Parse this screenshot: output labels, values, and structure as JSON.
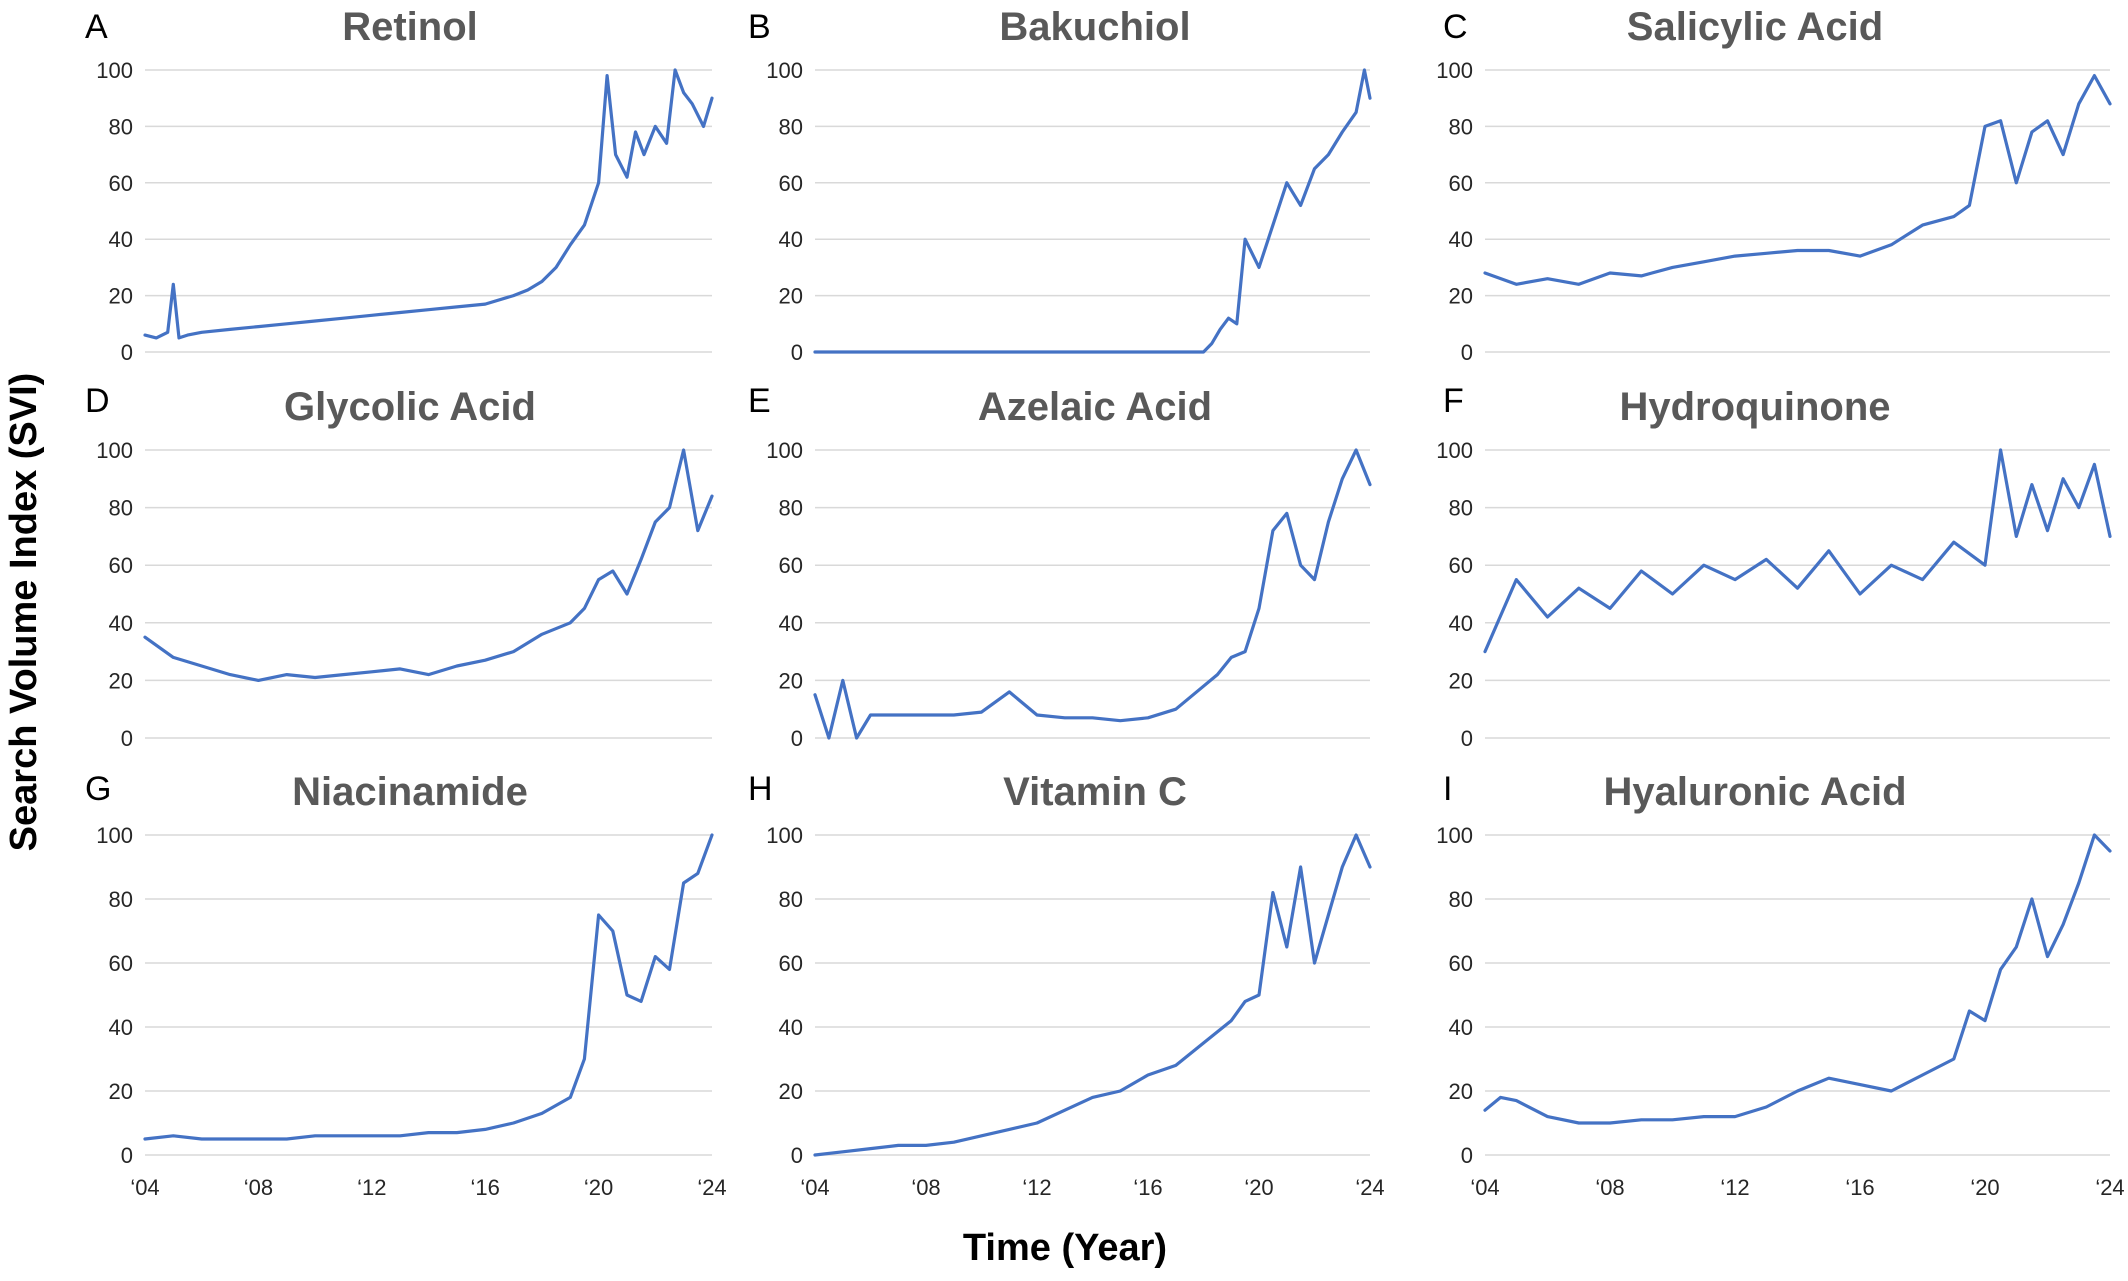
{
  "figure": {
    "ylabel": "Search Volume Index (SVI)",
    "xlabel": "Time (Year)",
    "series_color": "#4472c4",
    "grid_color": "#d9d9d9",
    "title_color": "#595959"
  },
  "chart_data": [
    {
      "type": "line",
      "letter": "A",
      "title": "Retinol",
      "xlim": [
        2004,
        2024
      ],
      "ylim": [
        0,
        100
      ],
      "yticks": [
        "0",
        "20",
        "40",
        "60",
        "80",
        "100"
      ],
      "xticks": [],
      "grid": true,
      "x": [
        2004.0,
        2004.4,
        2004.8,
        2005.0,
        2005.2,
        2005.5,
        2006,
        2007,
        2008,
        2009,
        2010,
        2011,
        2012,
        2013,
        2014,
        2015,
        2016,
        2017,
        2017.5,
        2018,
        2018.5,
        2019,
        2019.5,
        2020,
        2020.3,
        2020.6,
        2021,
        2021.3,
        2021.6,
        2022,
        2022.4,
        2022.7,
        2023,
        2023.3,
        2023.7,
        2024
      ],
      "values": [
        6,
        5,
        7,
        24,
        5,
        6,
        7,
        8,
        9,
        10,
        11,
        12,
        13,
        14,
        15,
        16,
        17,
        20,
        22,
        25,
        30,
        38,
        45,
        60,
        98,
        70,
        62,
        78,
        70,
        80,
        74,
        100,
        92,
        88,
        80,
        90
      ]
    },
    {
      "type": "line",
      "letter": "B",
      "title": "Bakuchiol",
      "xlim": [
        2004,
        2024
      ],
      "ylim": [
        0,
        100
      ],
      "yticks": [
        "0",
        "20",
        "40",
        "60",
        "80",
        "100"
      ],
      "xticks": [],
      "grid": true,
      "x": [
        2004,
        2010,
        2016,
        2018.0,
        2018.3,
        2018.6,
        2018.9,
        2019.2,
        2019.5,
        2020,
        2020.5,
        2021,
        2021.5,
        2022,
        2022.5,
        2023,
        2023.5,
        2023.8,
        2024
      ],
      "values": [
        0,
        0,
        0,
        0,
        3,
        8,
        12,
        10,
        40,
        30,
        45,
        60,
        52,
        65,
        70,
        78,
        85,
        100,
        90
      ]
    },
    {
      "type": "line",
      "letter": "C",
      "title": "Salicylic Acid",
      "xlim": [
        2004,
        2024
      ],
      "ylim": [
        0,
        100
      ],
      "yticks": [
        "0",
        "20",
        "40",
        "60",
        "80",
        "100"
      ],
      "xticks": [],
      "grid": true,
      "x": [
        2004,
        2005,
        2006,
        2007,
        2008,
        2009,
        2010,
        2011,
        2012,
        2013,
        2014,
        2015,
        2016,
        2017,
        2018,
        2019,
        2019.5,
        2020,
        2020.5,
        2021,
        2021.5,
        2022,
        2022.5,
        2023,
        2023.5,
        2024
      ],
      "values": [
        28,
        24,
        26,
        24,
        28,
        27,
        30,
        32,
        34,
        35,
        36,
        36,
        34,
        38,
        45,
        48,
        52,
        80,
        82,
        60,
        78,
        82,
        70,
        88,
        98,
        88
      ]
    },
    {
      "type": "line",
      "letter": "D",
      "title": "Glycolic Acid",
      "xlim": [
        2004,
        2024
      ],
      "ylim": [
        0,
        100
      ],
      "yticks": [
        "0",
        "20",
        "40",
        "60",
        "80",
        "100"
      ],
      "xticks": [],
      "grid": true,
      "x": [
        2004,
        2005,
        2006,
        2007,
        2008,
        2009,
        2010,
        2011,
        2012,
        2013,
        2014,
        2015,
        2016,
        2017,
        2018,
        2019,
        2019.5,
        2020,
        2020.5,
        2021,
        2021.5,
        2022,
        2022.5,
        2023,
        2023.5,
        2024
      ],
      "values": [
        35,
        28,
        25,
        22,
        20,
        22,
        21,
        22,
        23,
        24,
        22,
        25,
        27,
        30,
        36,
        40,
        45,
        55,
        58,
        50,
        62,
        75,
        80,
        100,
        72,
        84
      ]
    },
    {
      "type": "line",
      "letter": "E",
      "title": "Azelaic Acid",
      "xlim": [
        2004,
        2024
      ],
      "ylim": [
        0,
        100
      ],
      "yticks": [
        "0",
        "20",
        "40",
        "60",
        "80",
        "100"
      ],
      "xticks": [],
      "grid": true,
      "x": [
        2004,
        2004.5,
        2005,
        2005.5,
        2006,
        2007,
        2008,
        2009,
        2010,
        2011,
        2012,
        2013,
        2014,
        2015,
        2016,
        2017,
        2018,
        2018.5,
        2019,
        2019.5,
        2020,
        2020.5,
        2021,
        2021.5,
        2022,
        2022.5,
        2023,
        2023.5,
        2024
      ],
      "values": [
        15,
        0,
        20,
        0,
        8,
        8,
        8,
        8,
        9,
        16,
        8,
        7,
        7,
        6,
        7,
        10,
        18,
        22,
        28,
        30,
        45,
        72,
        78,
        60,
        55,
        75,
        90,
        100,
        88
      ]
    },
    {
      "type": "line",
      "letter": "F",
      "title": "Hydroquinone",
      "xlim": [
        2004,
        2024
      ],
      "ylim": [
        0,
        100
      ],
      "yticks": [
        "0",
        "20",
        "40",
        "60",
        "80",
        "100"
      ],
      "xticks": [],
      "grid": true,
      "x": [
        2004,
        2005,
        2006,
        2007,
        2008,
        2009,
        2010,
        2011,
        2012,
        2013,
        2014,
        2015,
        2016,
        2017,
        2018,
        2019,
        2020,
        2020.5,
        2021,
        2021.5,
        2022,
        2022.5,
        2023,
        2023.5,
        2024
      ],
      "values": [
        30,
        55,
        42,
        52,
        45,
        58,
        50,
        60,
        55,
        62,
        52,
        65,
        50,
        60,
        55,
        68,
        60,
        100,
        70,
        88,
        72,
        90,
        80,
        95,
        70
      ]
    },
    {
      "type": "line",
      "letter": "G",
      "title": "Niacinamide",
      "xlim": [
        2004,
        2024
      ],
      "ylim": [
        0,
        100
      ],
      "yticks": [
        "0",
        "20",
        "40",
        "60",
        "80",
        "100"
      ],
      "xticks": [
        "‘04",
        "‘08",
        "‘12",
        "‘16",
        "‘20",
        "‘24"
      ],
      "grid": true,
      "x": [
        2004,
        2005,
        2006,
        2007,
        2008,
        2009,
        2010,
        2011,
        2012,
        2013,
        2014,
        2015,
        2016,
        2017,
        2018,
        2019,
        2019.5,
        2020,
        2020.5,
        2021,
        2021.5,
        2022,
        2022.5,
        2023,
        2023.5,
        2024
      ],
      "values": [
        5,
        6,
        5,
        5,
        5,
        5,
        6,
        6,
        6,
        6,
        7,
        7,
        8,
        10,
        13,
        18,
        30,
        75,
        70,
        50,
        48,
        62,
        58,
        85,
        88,
        100
      ]
    },
    {
      "type": "line",
      "letter": "H",
      "title": "Vitamin C",
      "xlim": [
        2004,
        2024
      ],
      "ylim": [
        0,
        100
      ],
      "yticks": [
        "0",
        "20",
        "40",
        "60",
        "80",
        "100"
      ],
      "xticks": [
        "‘04",
        "‘08",
        "‘12",
        "‘16",
        "‘20",
        "‘24"
      ],
      "grid": true,
      "x": [
        2004,
        2005,
        2006,
        2007,
        2008,
        2009,
        2010,
        2011,
        2012,
        2013,
        2014,
        2015,
        2016,
        2017,
        2018,
        2019,
        2019.5,
        2020,
        2020.5,
        2021,
        2021.5,
        2022,
        2022.5,
        2023,
        2023.5,
        2024
      ],
      "values": [
        0,
        1,
        2,
        3,
        3,
        4,
        6,
        8,
        10,
        14,
        18,
        20,
        25,
        28,
        35,
        42,
        48,
        50,
        82,
        65,
        90,
        60,
        75,
        90,
        100,
        90
      ]
    },
    {
      "type": "line",
      "letter": "I",
      "title": "Hyaluronic Acid",
      "xlim": [
        2004,
        2024
      ],
      "ylim": [
        0,
        100
      ],
      "yticks": [
        "0",
        "20",
        "40",
        "60",
        "80",
        "100"
      ],
      "xticks": [
        "‘04",
        "‘08",
        "‘12",
        "‘16",
        "‘20",
        "‘24"
      ],
      "grid": true,
      "x": [
        2004,
        2004.5,
        2005,
        2006,
        2007,
        2008,
        2009,
        2010,
        2011,
        2012,
        2013,
        2014,
        2015,
        2016,
        2017,
        2018,
        2019,
        2019.5,
        2020,
        2020.5,
        2021,
        2021.5,
        2022,
        2022.5,
        2023,
        2023.5,
        2024
      ],
      "values": [
        14,
        18,
        17,
        12,
        10,
        10,
        11,
        11,
        12,
        12,
        15,
        20,
        24,
        22,
        20,
        25,
        30,
        45,
        42,
        58,
        65,
        80,
        62,
        72,
        85,
        100,
        95
      ]
    }
  ]
}
